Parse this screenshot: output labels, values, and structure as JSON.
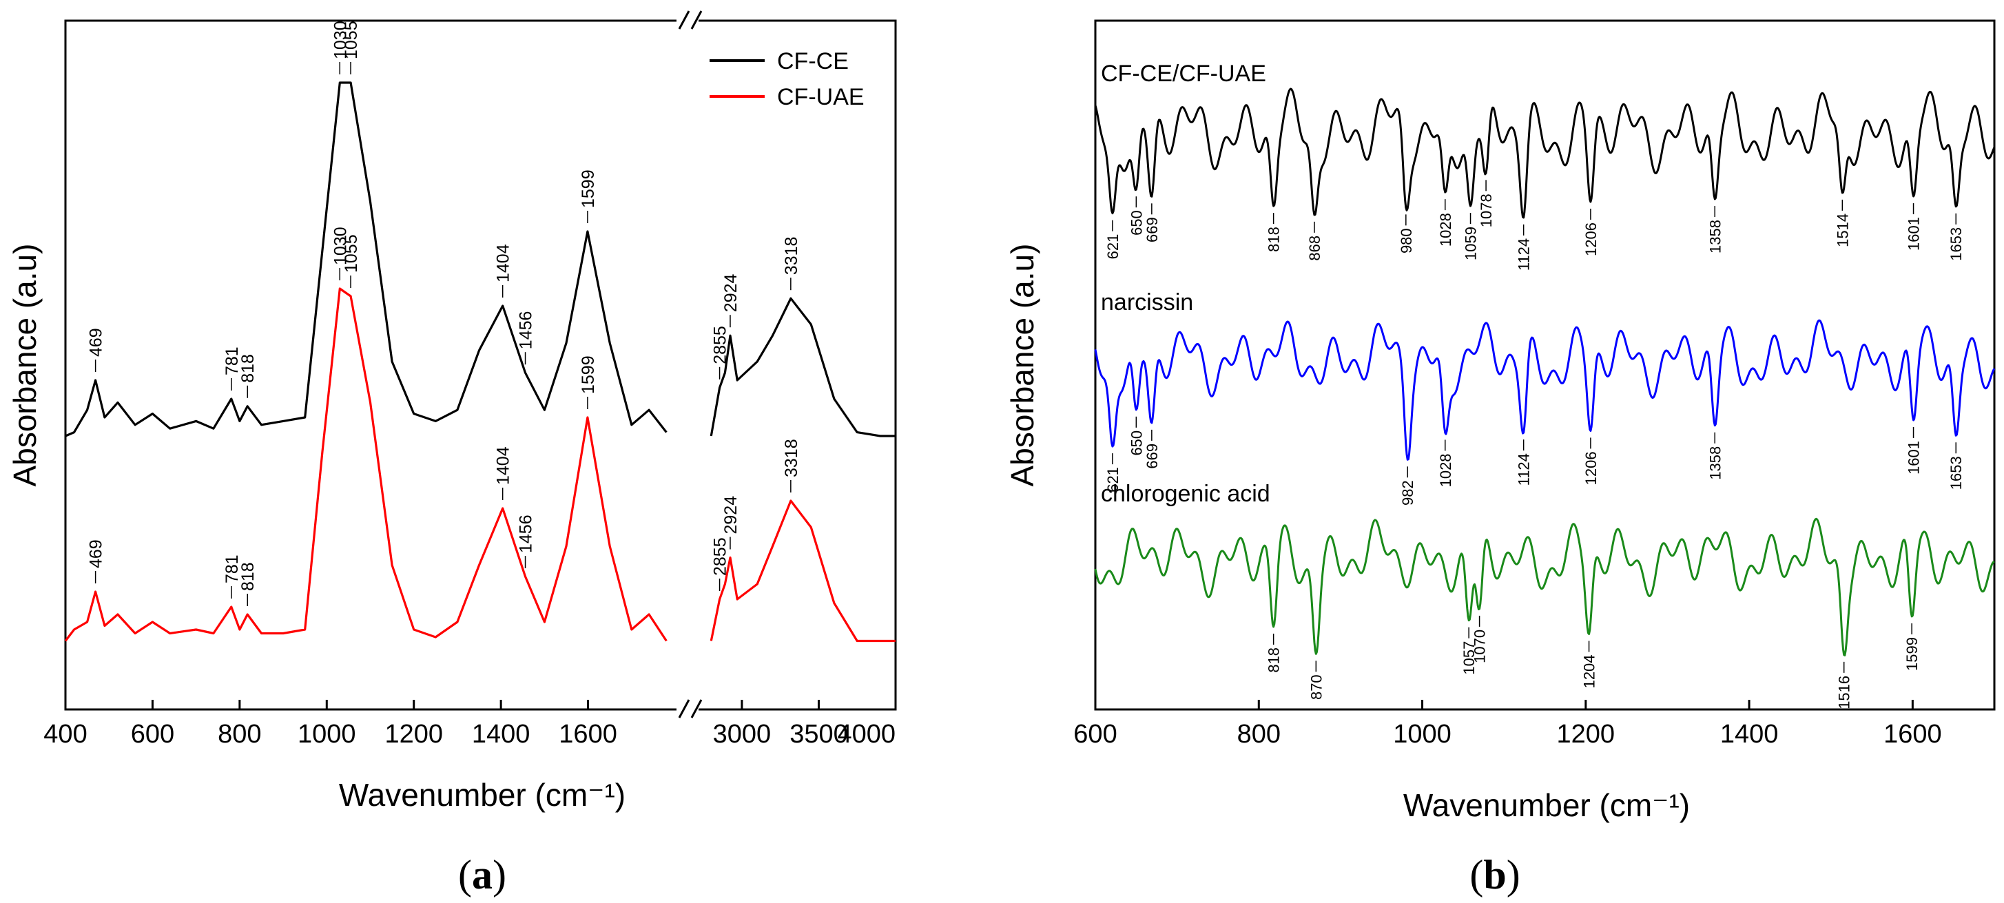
{
  "chart_data": [
    {
      "type": "line",
      "panel_label": "a",
      "xlabel": "Wavenumber (cm⁻¹)",
      "ylabel": "Absorbance (a.u)",
      "axis_break": true,
      "x_segments": [
        {
          "range": [
            400,
            1800
          ],
          "ticks": [
            400,
            600,
            800,
            1000,
            1200,
            1400,
            1600
          ]
        },
        {
          "range": [
            2700,
            4000
          ],
          "ticks": [
            3000,
            3500,
            4000
          ]
        }
      ],
      "legend": {
        "placement": "top-right",
        "entries": [
          "CF-CE",
          "CF-UAE"
        ]
      },
      "colors": {
        "CF-CE": "#000000",
        "CF-UAE": "#ff0000"
      },
      "series": [
        {
          "name": "CF-CE",
          "x": [
            400,
            420,
            450,
            469,
            490,
            520,
            560,
            600,
            640,
            700,
            740,
            781,
            800,
            818,
            850,
            900,
            950,
            990,
            1030,
            1055,
            1100,
            1150,
            1200,
            1250,
            1300,
            1350,
            1404,
            1456,
            1500,
            1550,
            1599,
            1650,
            1700,
            1740,
            1780,
            2800,
            2855,
            2890,
            2924,
            2970,
            3100,
            3200,
            3318,
            3450,
            3600,
            3750,
            3900,
            4000
          ],
          "y": [
            0.05,
            0.06,
            0.12,
            0.2,
            0.1,
            0.14,
            0.08,
            0.11,
            0.07,
            0.09,
            0.07,
            0.15,
            0.09,
            0.13,
            0.08,
            0.09,
            0.1,
            0.55,
            1.0,
            1.0,
            0.68,
            0.25,
            0.11,
            0.09,
            0.12,
            0.28,
            0.4,
            0.22,
            0.12,
            0.3,
            0.6,
            0.3,
            0.08,
            0.12,
            0.06,
            0.05,
            0.18,
            0.22,
            0.32,
            0.2,
            0.25,
            0.32,
            0.42,
            0.35,
            0.15,
            0.06,
            0.05,
            0.05
          ]
        },
        {
          "name": "CF-UAE",
          "x": [
            400,
            420,
            450,
            469,
            490,
            520,
            560,
            600,
            640,
            700,
            740,
            781,
            800,
            818,
            850,
            900,
            950,
            990,
            1030,
            1055,
            1100,
            1150,
            1200,
            1250,
            1300,
            1350,
            1404,
            1456,
            1500,
            1550,
            1599,
            1650,
            1700,
            1740,
            1780,
            2800,
            2855,
            2890,
            2924,
            2970,
            3100,
            3200,
            3318,
            3450,
            3600,
            3750,
            3900,
            4000
          ],
          "y": [
            0.05,
            0.08,
            0.1,
            0.18,
            0.09,
            0.12,
            0.07,
            0.1,
            0.07,
            0.08,
            0.07,
            0.14,
            0.08,
            0.12,
            0.07,
            0.07,
            0.08,
            0.55,
            0.98,
            0.96,
            0.68,
            0.25,
            0.08,
            0.06,
            0.1,
            0.25,
            0.4,
            0.22,
            0.1,
            0.3,
            0.64,
            0.3,
            0.08,
            0.12,
            0.05,
            0.05,
            0.16,
            0.2,
            0.27,
            0.16,
            0.2,
            0.3,
            0.42,
            0.35,
            0.15,
            0.05,
            0.05,
            0.05
          ]
        }
      ],
      "annotations": {
        "CF-CE": [
          "469",
          "781",
          "818",
          "1030",
          "1055",
          "1404",
          "1456",
          "1599",
          "2855",
          "2924",
          "3318"
        ],
        "CF-UAE": [
          "469",
          "781",
          "818",
          "1030",
          "1055",
          "1404",
          "1456",
          "1599",
          "2855",
          "2924",
          "3318"
        ]
      }
    },
    {
      "type": "line",
      "panel_label": "b",
      "xlabel": "Wavenumber (cm⁻¹)",
      "ylabel": "Absorbance (a.u)",
      "xlim": [
        600,
        1700
      ],
      "xticks": [
        600,
        800,
        1000,
        1200,
        1400,
        1600
      ],
      "colors": {
        "CF-CE/CF-UAE": "#000000",
        "narcissin": "#0000ff",
        "chlorogenic acid": "#1a8a1a"
      },
      "series": [
        {
          "name": "CF-CE/CF-UAE",
          "minima": [
            "621",
            "650",
            "669",
            "818",
            "868",
            "980",
            "1028",
            "1059",
            "1078",
            "1124",
            "1206",
            "1358",
            "1514",
            "1601",
            "1653"
          ]
        },
        {
          "name": "narcissin",
          "minima": [
            "621",
            "650",
            "669",
            "982",
            "1028",
            "1124",
            "1206",
            "1358",
            "1601",
            "1653"
          ]
        },
        {
          "name": "chlorogenic acid",
          "minima": [
            "818",
            "870",
            "1057",
            "1070",
            "1204",
            "1516",
            "1599"
          ]
        }
      ]
    }
  ]
}
